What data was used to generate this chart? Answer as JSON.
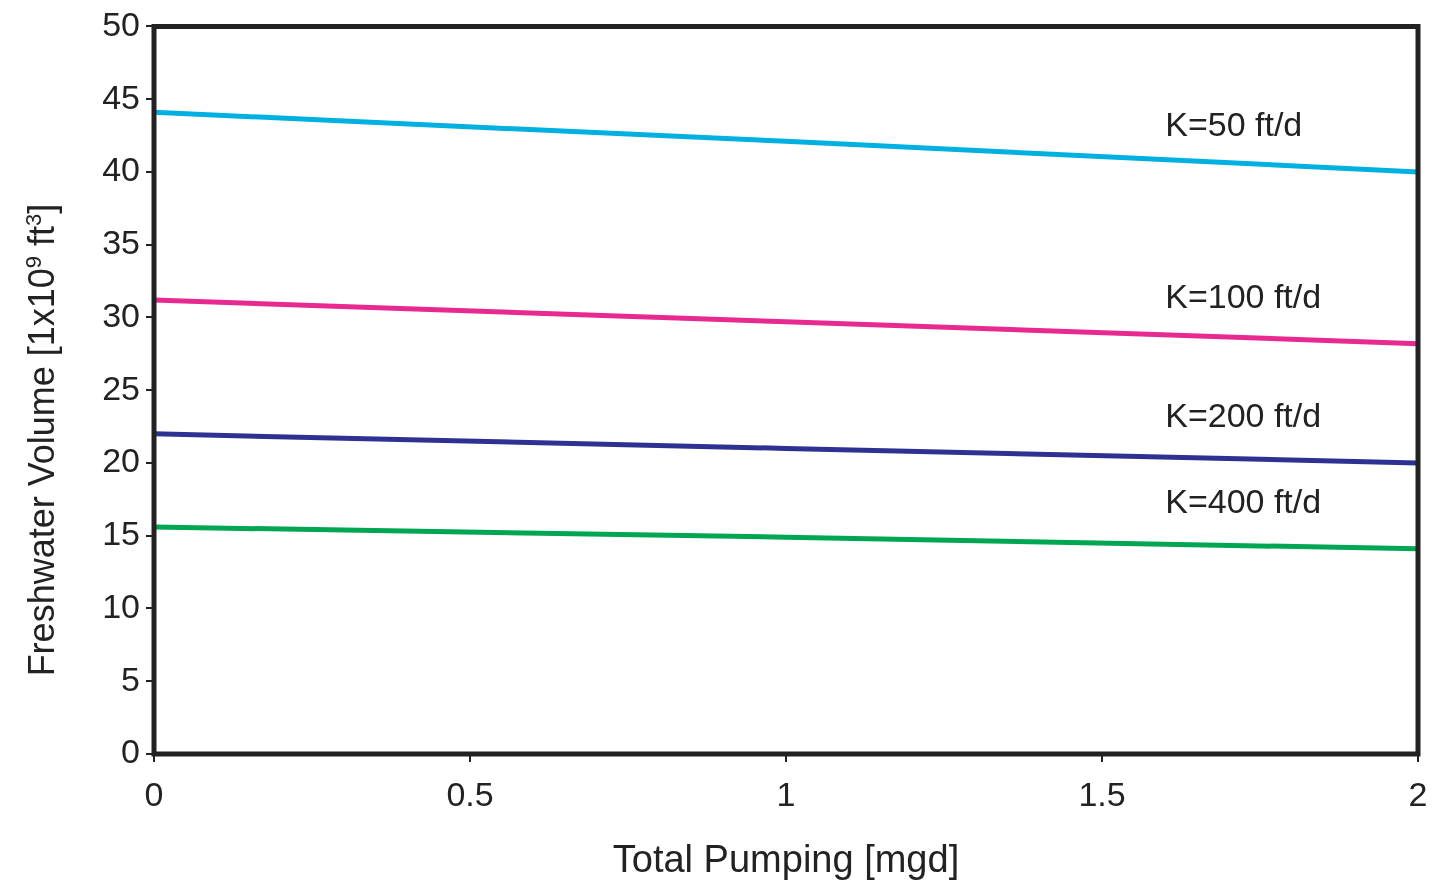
{
  "chart_data": {
    "type": "line",
    "xlabel": "Total Pumping [mgd]",
    "ylabel": "Freshwater Volume [1x10$^{9}$ ft$^{3}$]",
    "x": [
      0,
      1,
      2
    ],
    "series": [
      {
        "name": "K=50 ft/d",
        "color": "#00b0e0",
        "values": [
          44.1,
          42.1,
          40.0
        ]
      },
      {
        "name": "K=100 ft/d",
        "color": "#e8298f",
        "values": [
          31.2,
          29.7,
          28.2
        ]
      },
      {
        "name": "K=200 ft/d",
        "color": "#2e3192",
        "values": [
          22.0,
          21.0,
          20.0
        ]
      },
      {
        "name": "K=400 ft/d",
        "color": "#00a651",
        "values": [
          15.6,
          14.9,
          14.1
        ]
      }
    ],
    "xlim": [
      0,
      2
    ],
    "xticks": [
      0,
      0.5,
      1,
      1.5,
      2
    ],
    "ylim": [
      0,
      50
    ],
    "yticks": [
      0,
      5,
      10,
      15,
      20,
      25,
      30,
      35,
      40,
      45,
      50
    ],
    "grid": false,
    "legend": false,
    "marker": "none",
    "line_style": "solid"
  }
}
